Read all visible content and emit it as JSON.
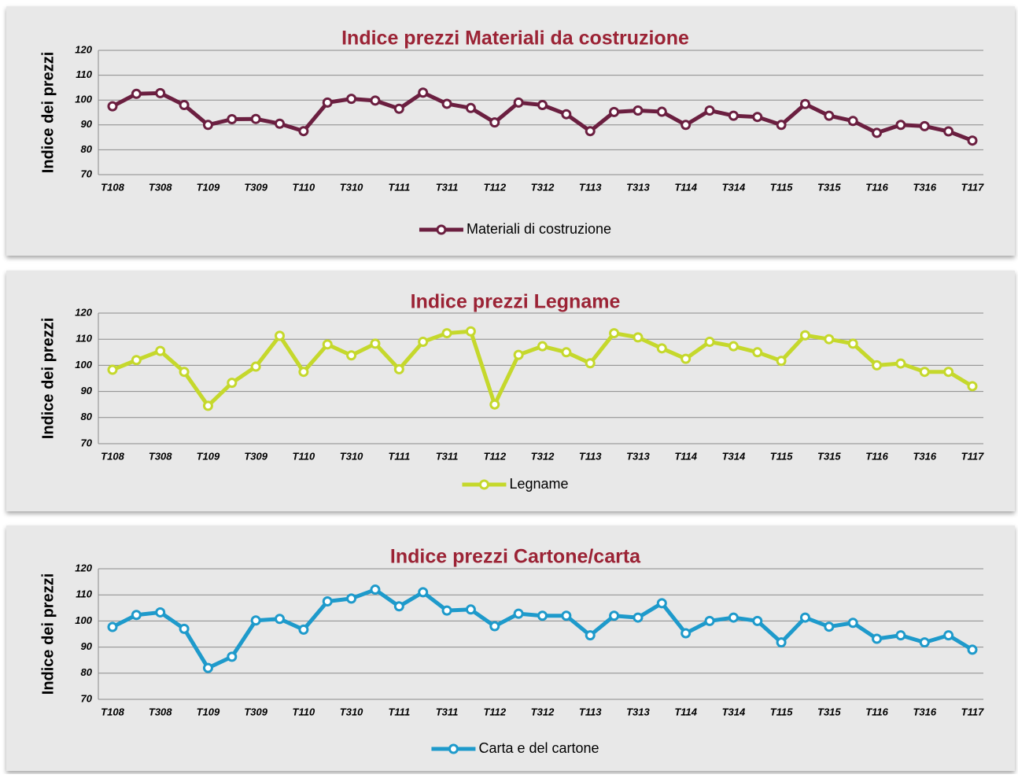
{
  "chart_data": [
    {
      "type": "line",
      "title": "Indice prezzi Materiali da costruzione",
      "y_label": "Indice dei prezzi",
      "categories": [
        "T108",
        null,
        "T308",
        null,
        "T109",
        null,
        "T309",
        null,
        "T110",
        null,
        "T310",
        null,
        "T111",
        null,
        "T311",
        null,
        "T112",
        null,
        "T312",
        null,
        "T113",
        null,
        "T313",
        null,
        "T114",
        null,
        "T314",
        null,
        "T115",
        null,
        "T315",
        null,
        "T116",
        null,
        "T316",
        null,
        "T117"
      ],
      "series": [
        {
          "name": "Materiali di costruzione",
          "color": "#6b1f40",
          "values": [
            97.5,
            102.5,
            102.8,
            98,
            90,
            92.3,
            92.4,
            90.5,
            87.5,
            99,
            100.5,
            99.8,
            96.5,
            103,
            98.5,
            96.8,
            91,
            99,
            98,
            94.3,
            87.5,
            95.2,
            95.8,
            95.3,
            90,
            95.8,
            93.7,
            93.2,
            90,
            98.4,
            93.7,
            91.6,
            86.8,
            90,
            89.5,
            87.4,
            83.7
          ]
        }
      ],
      "ylim": [
        70,
        120
      ],
      "yticks": [
        70,
        80,
        90,
        100,
        110,
        120
      ],
      "grid": true,
      "legend": "bottom"
    },
    {
      "type": "line",
      "title": "Indice prezzi Legname",
      "y_label": "Indice dei prezzi",
      "categories": [
        "T108",
        null,
        "T308",
        null,
        "T109",
        null,
        "T309",
        null,
        "T110",
        null,
        "T310",
        null,
        "T111",
        null,
        "T311",
        null,
        "T112",
        null,
        "T312",
        null,
        "T113",
        null,
        "T313",
        null,
        "T114",
        null,
        "T314",
        null,
        "T115",
        null,
        "T315",
        null,
        "T116",
        null,
        "T316",
        null,
        "T117"
      ],
      "series": [
        {
          "name": "Legname",
          "color": "#c5d82c",
          "values": [
            98.3,
            102,
            105.5,
            97.5,
            84.5,
            93.3,
            99.5,
            111.3,
            97.5,
            108,
            103.8,
            108.3,
            98.5,
            109,
            112.3,
            113,
            85,
            104,
            107.3,
            105,
            100.8,
            112.3,
            110.7,
            106.5,
            102.5,
            109,
            107.3,
            105,
            101.7,
            111.5,
            110,
            108.3,
            100,
            100.7,
            97.5,
            97.5,
            92
          ]
        }
      ],
      "ylim": [
        70,
        120
      ],
      "yticks": [
        70,
        80,
        90,
        100,
        110,
        120
      ],
      "grid": true,
      "legend": "bottom"
    },
    {
      "type": "line",
      "title": "Indice prezzi Cartone/carta",
      "y_label": "Indice dei prezzi",
      "categories": [
        "T108",
        null,
        "T308",
        null,
        "T109",
        null,
        "T309",
        null,
        "T110",
        null,
        "T310",
        null,
        "T111",
        null,
        "T311",
        null,
        "T112",
        null,
        "T312",
        null,
        "T113",
        null,
        "T313",
        null,
        "T114",
        null,
        "T314",
        null,
        "T115",
        null,
        "T315",
        null,
        "T116",
        null,
        "T316",
        null,
        "T117"
      ],
      "series": [
        {
          "name": "Carta e del cartone",
          "color": "#1e9acb",
          "values": [
            97.7,
            102.3,
            103.3,
            97,
            82,
            86.3,
            100.2,
            100.8,
            96.7,
            107.5,
            108.6,
            112,
            105.6,
            111,
            104,
            104.4,
            98,
            102.8,
            102,
            102,
            94.5,
            102,
            101.3,
            106.8,
            95.3,
            100,
            101.3,
            100,
            91.8,
            101.3,
            97.8,
            99.3,
            93.2,
            94.5,
            91.8,
            94.5,
            89
          ]
        }
      ],
      "ylim": [
        70,
        120
      ],
      "yticks": [
        70,
        80,
        90,
        100,
        110,
        120
      ],
      "grid": true,
      "legend": "bottom"
    }
  ]
}
